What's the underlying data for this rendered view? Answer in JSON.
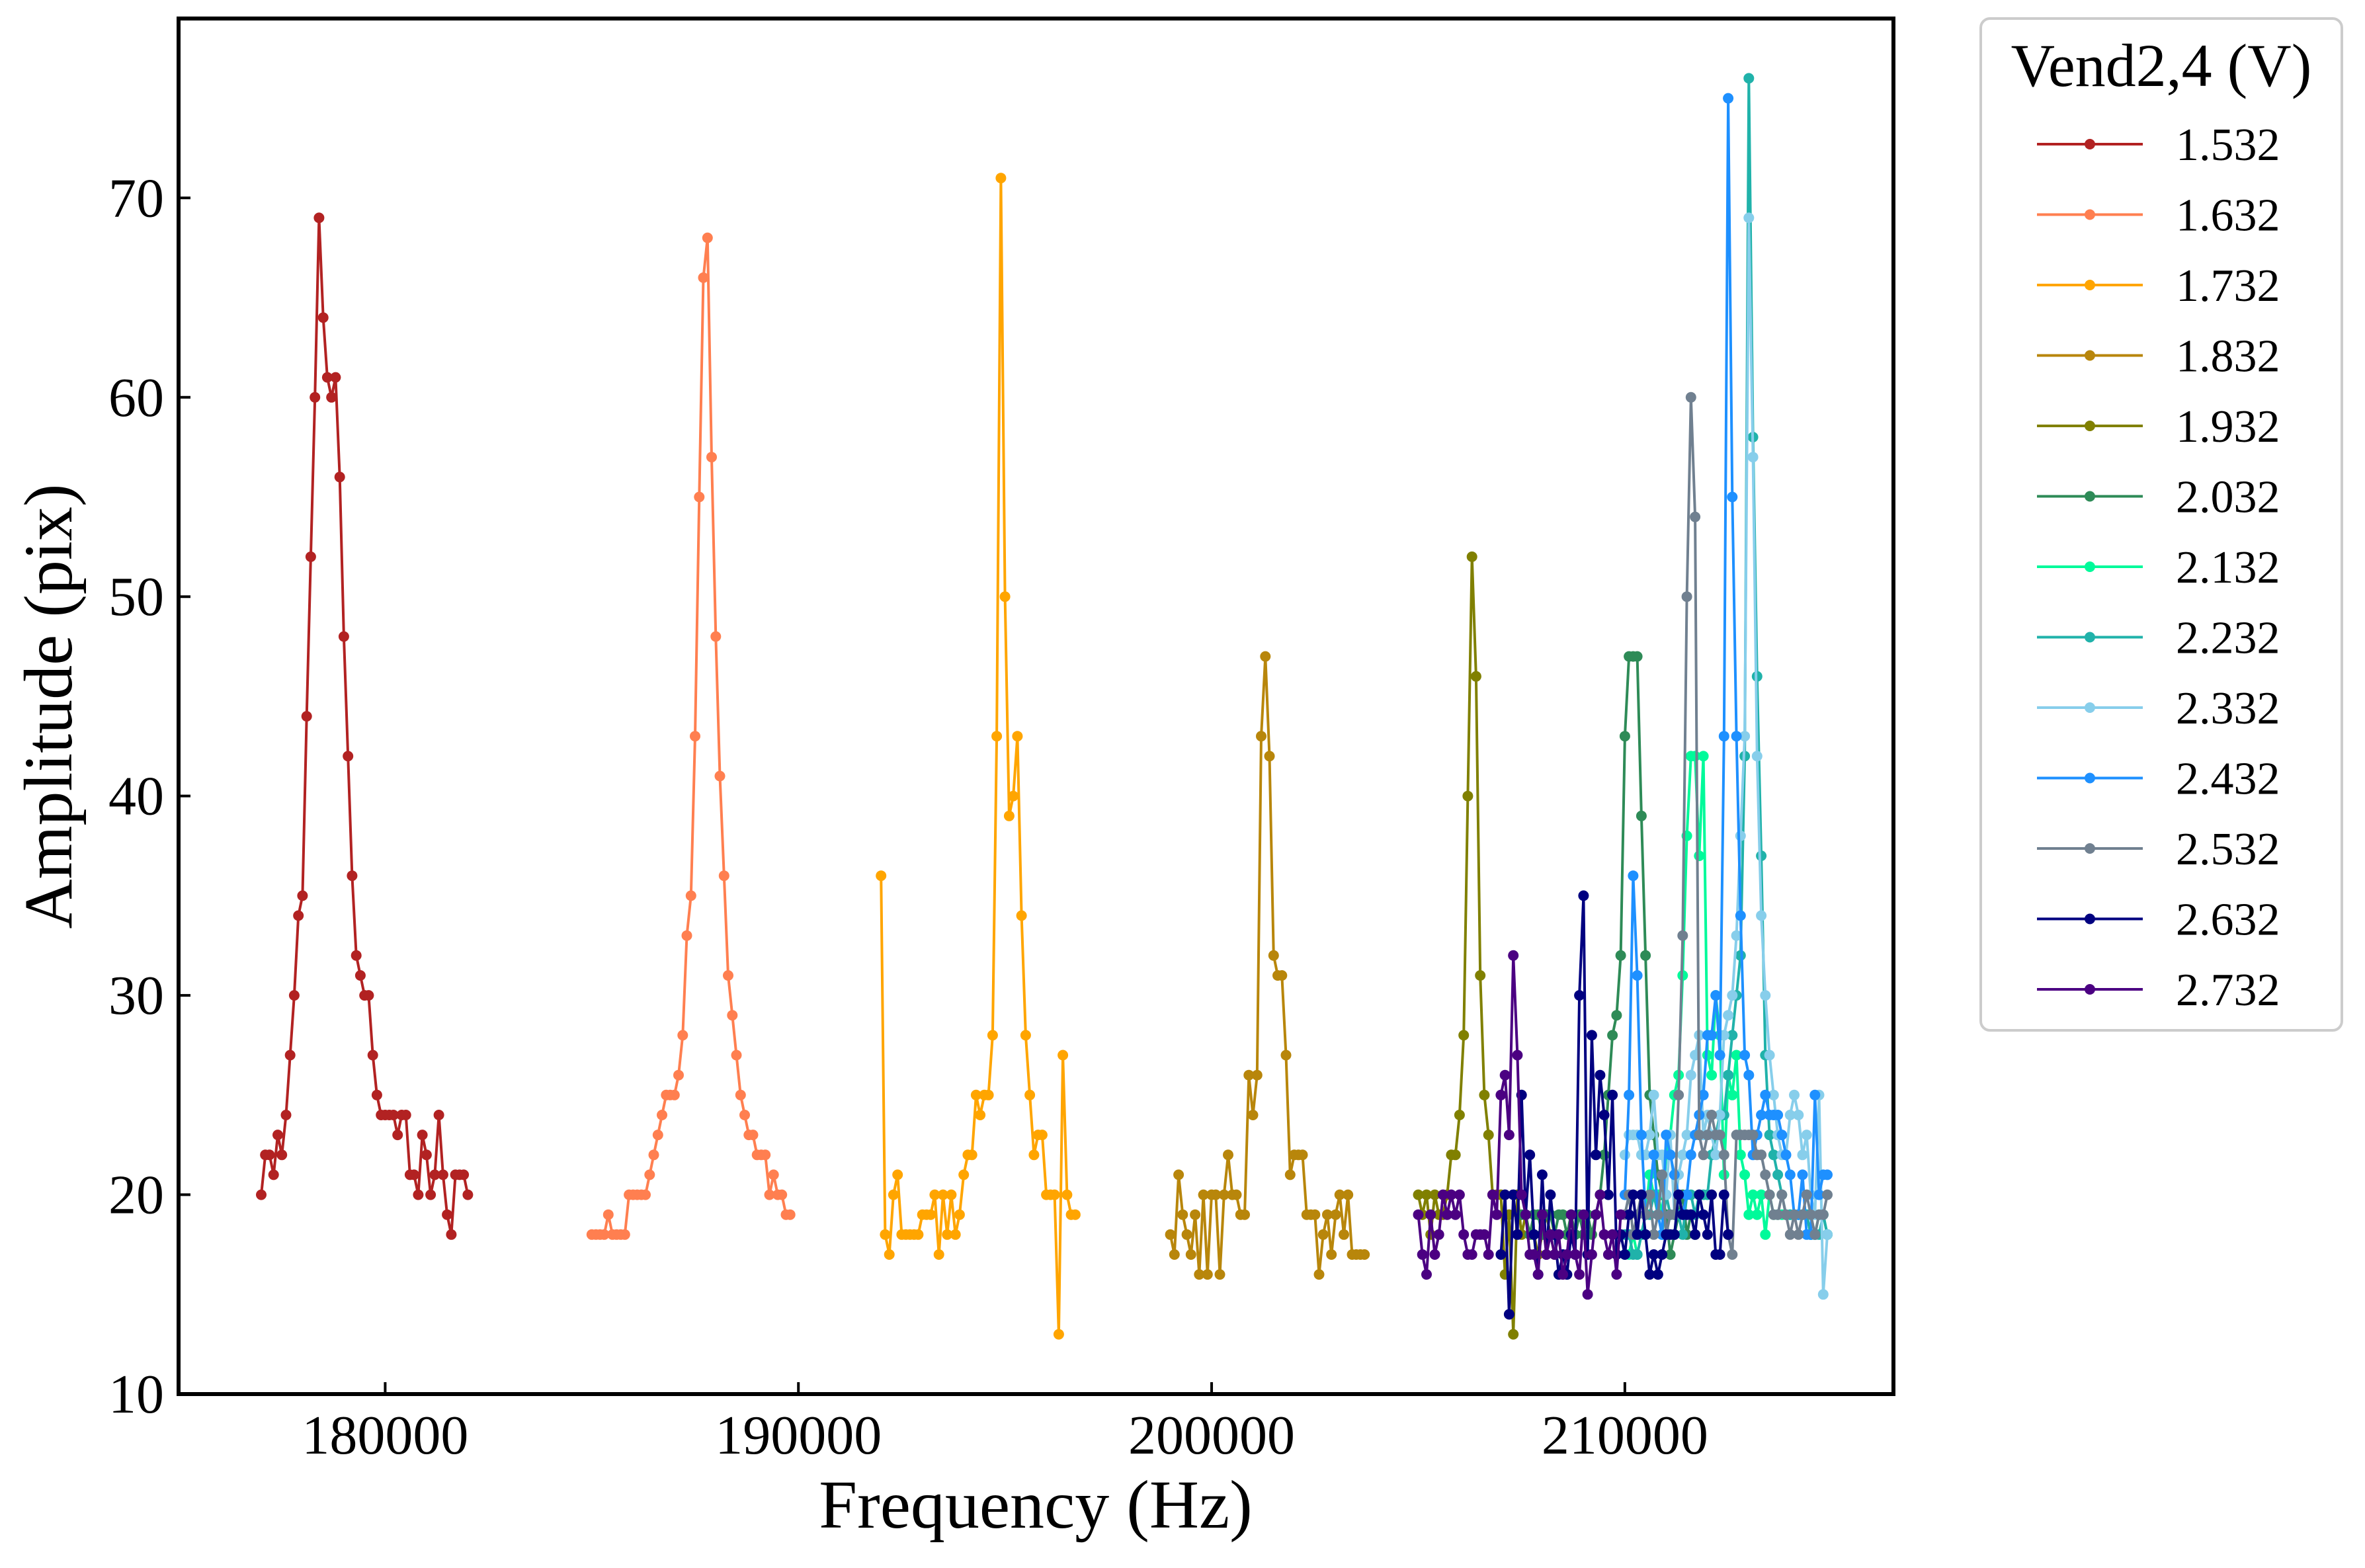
{
  "chart_data": {
    "type": "line",
    "title": "",
    "xlabel": "Frequency (Hz)",
    "ylabel": "Amplitude (pix)",
    "xlim": [
      175000,
      216500
    ],
    "ylim": [
      10,
      79
    ],
    "x_ticks": [
      180000,
      190000,
      200000,
      210000
    ],
    "y_ticks": [
      10,
      20,
      30,
      40,
      50,
      60,
      70
    ],
    "x_tick_labels": [
      "180000",
      "190000",
      "200000",
      "210000"
    ],
    "y_tick_labels": [
      "10",
      "20",
      "30",
      "40",
      "50",
      "60",
      "70"
    ],
    "grid": false,
    "legend": {
      "title": "Vend2,4 (V)",
      "placement": "outside-right"
    },
    "series": [
      {
        "name": "1.532",
        "color": "#b22222",
        "start": 177000,
        "step": 100,
        "values": [
          20,
          22,
          22,
          21,
          23,
          22,
          24,
          27,
          30,
          34,
          35,
          44,
          52,
          60,
          69,
          64,
          61,
          60,
          61,
          56,
          48,
          42,
          36,
          32,
          31,
          30,
          30,
          27,
          25,
          24,
          24,
          24,
          24,
          23,
          24,
          24,
          21,
          21,
          20,
          23,
          22,
          20,
          21,
          24,
          21,
          19,
          18,
          21,
          21,
          21,
          20
        ]
      },
      {
        "name": "1.632",
        "color": "#ff7f50",
        "start": 185000,
        "step": 100,
        "values": [
          18,
          18,
          18,
          18,
          19,
          18,
          18,
          18,
          18,
          20,
          20,
          20,
          20,
          20,
          21,
          22,
          23,
          24,
          25,
          25,
          25,
          26,
          28,
          33,
          35,
          43,
          55,
          66,
          68,
          57,
          48,
          41,
          36,
          31,
          29,
          27,
          25,
          24,
          23,
          23,
          22,
          22,
          22,
          20,
          21,
          20,
          20,
          19,
          19
        ]
      },
      {
        "name": "1.732",
        "color": "#ffa500",
        "start": 192000,
        "step": 100,
        "values": [
          36,
          18,
          17,
          20,
          21,
          18,
          18,
          18,
          18,
          18,
          19,
          19,
          19,
          20,
          17,
          20,
          18,
          20,
          18,
          19,
          21,
          22,
          22,
          25,
          24,
          25,
          25,
          28,
          43,
          71,
          50,
          39,
          40,
          43,
          34,
          28,
          25,
          22,
          23,
          23,
          20,
          20,
          20,
          13,
          27,
          20,
          19,
          19
        ]
      },
      {
        "name": "1.832",
        "color": "#b8860b",
        "start": 199000,
        "step": 100,
        "values": [
          18,
          17,
          21,
          19,
          18,
          17,
          19,
          16,
          20,
          16,
          20,
          20,
          16,
          20,
          22,
          20,
          20,
          19,
          19,
          26,
          24,
          26,
          43,
          47,
          42,
          32,
          31,
          31,
          27,
          21,
          22,
          22,
          22,
          19,
          19,
          19,
          16,
          18,
          19,
          17,
          19,
          20,
          18,
          20,
          17,
          17,
          17,
          17
        ]
      },
      {
        "name": "1.932",
        "color": "#808000",
        "start": 205000,
        "step": 100,
        "values": [
          20,
          19,
          20,
          18,
          20,
          19,
          19,
          20,
          22,
          22,
          24,
          28,
          40,
          52,
          46,
          31,
          25,
          23,
          20,
          20,
          20,
          16,
          19,
          13,
          20,
          18,
          19,
          18,
          18,
          17,
          18,
          19,
          18,
          17
        ]
      },
      {
        "name": "2.032",
        "color": "#2e8b57",
        "start": 207500,
        "step": 100,
        "values": [
          19,
          19,
          18,
          19,
          19,
          18,
          19,
          19,
          18,
          19,
          19,
          18,
          19,
          18,
          19,
          18,
          19,
          18,
          19,
          20,
          22,
          25,
          28,
          29,
          32,
          43,
          47,
          47,
          47,
          39,
          32,
          25,
          23,
          21,
          20,
          19,
          17,
          18,
          19,
          20,
          18,
          19,
          18
        ]
      },
      {
        "name": "2.132",
        "color": "#00fa9a",
        "start": 210000,
        "step": 100,
        "values": [
          17,
          17,
          18,
          17,
          18,
          19,
          21,
          20,
          20,
          19,
          22,
          23,
          25,
          26,
          31,
          38,
          42,
          42,
          37,
          42,
          27,
          26,
          30,
          28,
          21,
          26,
          25,
          27,
          22,
          21,
          19,
          20,
          19,
          20,
          18,
          20,
          19,
          19,
          19,
          19,
          19,
          19,
          19,
          19,
          19,
          18,
          18,
          19,
          19,
          18
        ]
      },
      {
        "name": "2.232",
        "color": "#20b2aa",
        "start": 210000,
        "step": 100,
        "values": [
          18,
          18,
          17,
          17,
          18,
          19,
          19,
          20,
          19,
          18,
          20,
          19,
          19,
          19,
          18,
          20,
          20,
          19,
          20,
          20,
          20,
          22,
          23,
          24,
          24,
          26,
          28,
          30,
          32,
          42,
          76,
          58,
          46,
          37,
          27,
          23,
          22,
          21,
          20,
          19,
          19,
          19,
          19,
          19,
          19,
          18,
          18,
          18,
          19,
          18
        ]
      },
      {
        "name": "2.332",
        "color": "#87ceeb",
        "start": 210000,
        "step": 100,
        "values": [
          22,
          23,
          23,
          23,
          22,
          22,
          23,
          25,
          22,
          22,
          20,
          23,
          19,
          21,
          22,
          23,
          26,
          27,
          28,
          23,
          24,
          23,
          22,
          24,
          28,
          29,
          30,
          33,
          38,
          43,
          69,
          57,
          42,
          34,
          30,
          27,
          25,
          23,
          22,
          22,
          24,
          25,
          24,
          22,
          23,
          20,
          19,
          25,
          15,
          18
        ]
      },
      {
        "name": "2.432",
        "color": "#1e90ff",
        "start": 210000,
        "step": 100,
        "values": [
          20,
          25,
          36,
          31,
          23,
          19,
          20,
          22,
          19,
          18,
          23,
          22,
          21,
          20,
          19,
          20,
          22,
          23,
          24,
          25,
          28,
          28,
          30,
          27,
          43,
          75,
          55,
          43,
          34,
          27,
          26,
          22,
          23,
          24,
          25,
          24,
          24,
          24,
          23,
          22,
          21,
          19,
          19,
          21,
          18,
          18,
          25,
          20,
          21,
          21
        ]
      },
      {
        "name": "2.532",
        "color": "#708090",
        "start": 210000,
        "step": 100,
        "values": [
          19,
          20,
          18,
          19,
          20,
          19,
          20,
          18,
          19,
          21,
          18,
          19,
          19,
          25,
          33,
          50,
          60,
          54,
          23,
          22,
          23,
          24,
          23,
          23,
          22,
          18,
          17,
          23,
          23,
          23,
          23,
          23,
          22,
          22,
          21,
          20,
          19,
          19,
          20,
          19,
          18,
          19,
          18,
          19,
          20,
          19,
          18,
          19,
          19,
          20
        ]
      },
      {
        "name": "2.632",
        "color": "#000080",
        "start": 207000,
        "step": 100,
        "values": [
          17,
          20,
          14,
          20,
          18,
          25,
          19,
          22,
          18,
          16,
          21,
          17,
          20,
          18,
          16,
          17,
          16,
          18,
          17,
          30,
          35,
          17,
          28,
          22,
          26,
          24,
          20,
          25,
          17,
          18,
          17,
          19,
          20,
          18,
          20,
          18,
          16,
          17,
          16,
          17,
          18,
          18,
          18,
          20,
          19,
          19,
          19,
          18,
          20,
          19,
          18,
          20,
          17,
          17,
          20,
          18
        ]
      },
      {
        "name": "2.732",
        "color": "#4b0082",
        "start": 205000,
        "step": 100,
        "values": [
          19,
          17,
          16,
          19,
          17,
          18,
          20,
          19,
          20,
          19,
          20,
          18,
          17,
          17,
          18,
          18,
          18,
          17,
          20,
          19,
          25,
          26,
          23,
          32,
          27,
          20,
          19,
          17,
          17,
          16,
          19,
          17,
          18,
          17,
          18,
          16,
          17,
          19,
          17,
          16,
          19,
          15,
          17,
          19,
          20,
          18,
          17,
          18,
          16,
          19
        ]
      }
    ]
  }
}
